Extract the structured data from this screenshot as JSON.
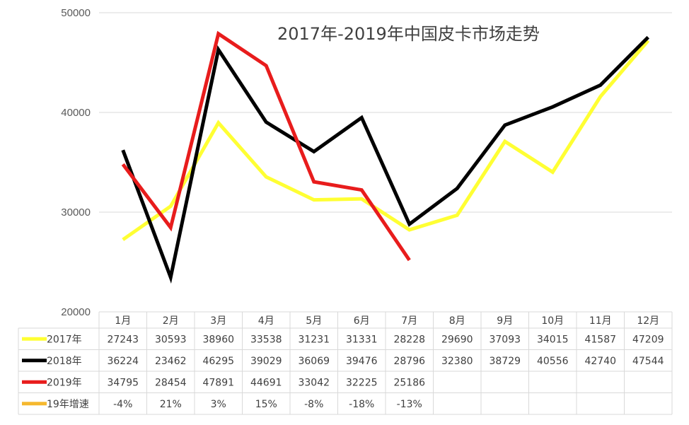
{
  "chart_data": {
    "type": "line",
    "title": "2017年-2019年中国皮卡市场走势",
    "categories": [
      "1月",
      "2月",
      "3月",
      "4月",
      "5月",
      "6月",
      "7月",
      "8月",
      "9月",
      "10月",
      "11月",
      "12月"
    ],
    "ylim": [
      20000,
      50000
    ],
    "yticks": [
      20000,
      30000,
      40000,
      50000
    ],
    "grid": true,
    "legend": "data-table",
    "series": [
      {
        "name": "2017年",
        "color": "#ffff33",
        "values": [
          27243,
          30593,
          38960,
          33538,
          31231,
          31331,
          28228,
          29690,
          37093,
          34015,
          41587,
          47209
        ]
      },
      {
        "name": "2018年",
        "color": "#000000",
        "values": [
          36224,
          23462,
          46295,
          39029,
          36069,
          39476,
          28796,
          32380,
          38729,
          40556,
          42740,
          47544
        ]
      },
      {
        "name": "2019年",
        "color": "#e81c1c",
        "values": [
          34795,
          28454,
          47891,
          44691,
          33042,
          32225,
          25186,
          null,
          null,
          null,
          null,
          null
        ]
      }
    ],
    "growth_row": {
      "name": "19年增速",
      "color": "#f5b82e",
      "values": [
        "-4%",
        "21%",
        "3%",
        "15%",
        "-8%",
        "-18%",
        "-13%",
        "",
        "",
        "",
        "",
        ""
      ]
    }
  }
}
